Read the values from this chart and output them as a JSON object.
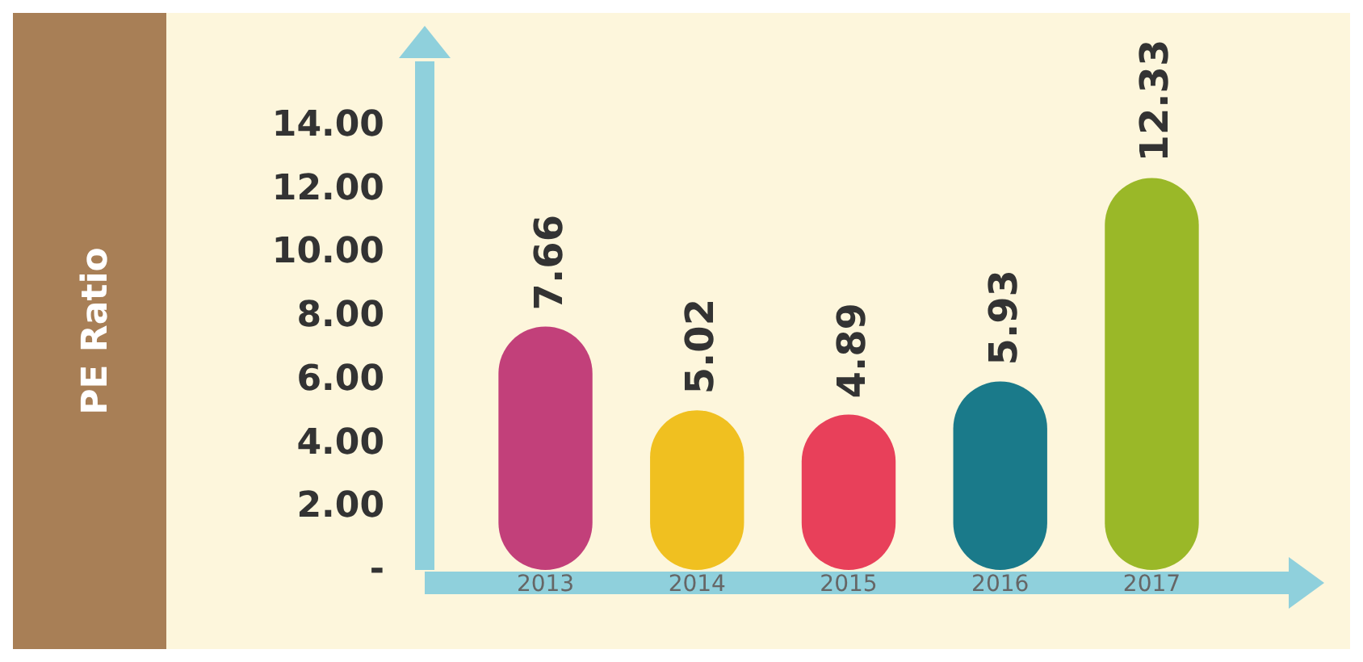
{
  "chart_data": {
    "type": "bar",
    "ylabel": "PE Ratio",
    "categories": [
      "2013",
      "2014",
      "2015",
      "2016",
      "2017"
    ],
    "values": [
      7.66,
      5.02,
      4.89,
      5.93,
      12.33
    ],
    "colors": [
      "#c2407a",
      "#f0c020",
      "#e8405a",
      "#1a7a8a",
      "#9ab828"
    ],
    "ylim": [
      0,
      16
    ],
    "yticks": [
      {
        "value": 0,
        "label": "-"
      },
      {
        "value": 2,
        "label": "2.00"
      },
      {
        "value": 4,
        "label": "4.00"
      },
      {
        "value": 6,
        "label": "6.00"
      },
      {
        "value": 8,
        "label": "8.00"
      },
      {
        "value": 10,
        "label": "10.00"
      },
      {
        "value": 12,
        "label": "12.00"
      },
      {
        "value": 14,
        "label": "14.00"
      }
    ],
    "data_labels": true,
    "grid": false
  }
}
